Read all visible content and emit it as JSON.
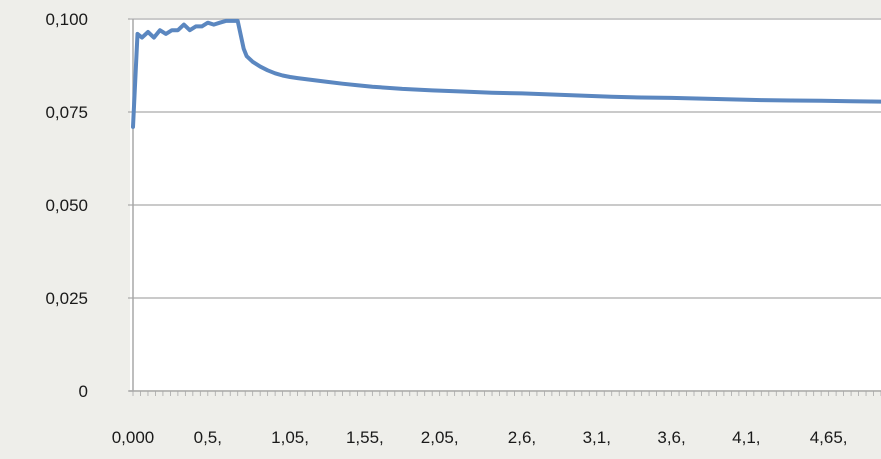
{
  "chart_data": {
    "type": "line",
    "title": "",
    "xlabel": "",
    "ylabel": "",
    "ylim": [
      0,
      0.1
    ],
    "xlim": [
      0,
      5.0
    ],
    "grid": "horizontal",
    "legend": "none",
    "y_ticks": [
      "0",
      "0,025",
      "0,050",
      "0,075",
      "0,100"
    ],
    "y_tick_values": [
      0,
      0.025,
      0.05,
      0.075,
      0.1
    ],
    "x_ticks": [
      "0,000",
      "0,5,",
      "1,05,",
      "1,55,",
      "2,05,",
      "2,6,",
      "3,1,",
      "3,6,",
      "4,1,",
      "4,65,"
    ],
    "x_tick_values": [
      0,
      0.5,
      1.05,
      1.55,
      2.05,
      2.6,
      3.1,
      3.6,
      4.1,
      4.65
    ],
    "colors": {
      "series": "#5b87c0",
      "plot_bg": "#ffffff",
      "grid": "#b8b8b8",
      "axis": "#a8a8a8"
    },
    "series": [
      {
        "x": [
          0,
          0.03,
          0.06,
          0.1,
          0.14,
          0.18,
          0.22,
          0.26,
          0.3,
          0.34,
          0.38,
          0.42,
          0.46,
          0.5,
          0.54,
          0.58,
          0.62,
          0.66,
          0.7,
          0.74,
          0.76,
          0.8,
          0.85,
          0.9,
          0.95,
          1.0,
          1.05,
          1.1,
          1.2,
          1.3,
          1.4,
          1.5,
          1.6,
          1.8,
          2.0,
          2.2,
          2.4,
          2.6,
          2.8,
          3.0,
          3.2,
          3.4,
          3.6,
          3.8,
          4.0,
          4.2,
          4.4,
          4.6,
          4.8,
          5.0
        ],
        "y": [
          0.071,
          0.096,
          0.095,
          0.0965,
          0.095,
          0.097,
          0.096,
          0.097,
          0.097,
          0.0985,
          0.097,
          0.098,
          0.098,
          0.099,
          0.0985,
          0.099,
          0.0995,
          0.0995,
          0.0995,
          0.092,
          0.09,
          0.0885,
          0.0872,
          0.0862,
          0.0854,
          0.0848,
          0.0844,
          0.0841,
          0.0836,
          0.0831,
          0.0826,
          0.0822,
          0.0818,
          0.0812,
          0.0808,
          0.0805,
          0.0802,
          0.08,
          0.0797,
          0.0794,
          0.0791,
          0.0789,
          0.0788,
          0.0786,
          0.0784,
          0.0782,
          0.0781,
          0.078,
          0.0779,
          0.0778
        ]
      }
    ]
  }
}
